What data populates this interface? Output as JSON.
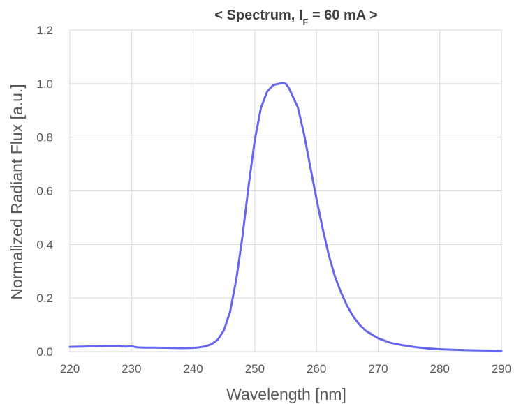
{
  "chart_data": {
    "type": "line",
    "title": {
      "prefix": "< Spectrum, I",
      "subscript": "F",
      "suffix": " = 60 mA >"
    },
    "xlabel": "Wavelength [nm]",
    "ylabel": "Normalized Radiant Flux [a.u.]",
    "xlim": [
      220,
      290
    ],
    "ylim": [
      0,
      1.2
    ],
    "xticks": [
      "220",
      "230",
      "240",
      "250",
      "260",
      "270",
      "280",
      "290"
    ],
    "yticks": [
      "0.0",
      "0.2",
      "0.4",
      "0.6",
      "0.8",
      "1.0",
      "1.2"
    ],
    "grid": true,
    "line_color": "#6666ee",
    "series": [
      {
        "x": [
          220,
          222,
          224,
          226,
          227,
          228,
          229,
          230,
          231,
          232,
          234,
          236,
          238,
          240,
          241,
          242,
          243,
          244,
          245,
          246,
          247,
          248,
          249,
          250,
          251,
          252,
          253,
          254,
          254.5,
          255,
          255.5,
          256,
          257,
          258,
          259,
          260,
          261,
          262,
          263,
          264,
          265,
          266,
          267,
          268,
          270,
          272,
          274,
          276,
          278,
          280,
          282,
          284,
          286,
          288,
          290
        ],
        "y": [
          0.018,
          0.019,
          0.02,
          0.021,
          0.021,
          0.021,
          0.019,
          0.02,
          0.016,
          0.015,
          0.015,
          0.014,
          0.013,
          0.014,
          0.016,
          0.02,
          0.028,
          0.045,
          0.08,
          0.15,
          0.27,
          0.43,
          0.62,
          0.79,
          0.91,
          0.97,
          0.995,
          1.0,
          1.002,
          1.0,
          0.985,
          0.96,
          0.91,
          0.81,
          0.69,
          0.57,
          0.46,
          0.36,
          0.28,
          0.22,
          0.17,
          0.13,
          0.1,
          0.078,
          0.05,
          0.033,
          0.024,
          0.017,
          0.012,
          0.009,
          0.007,
          0.006,
          0.005,
          0.004,
          0.003
        ]
      }
    ]
  }
}
